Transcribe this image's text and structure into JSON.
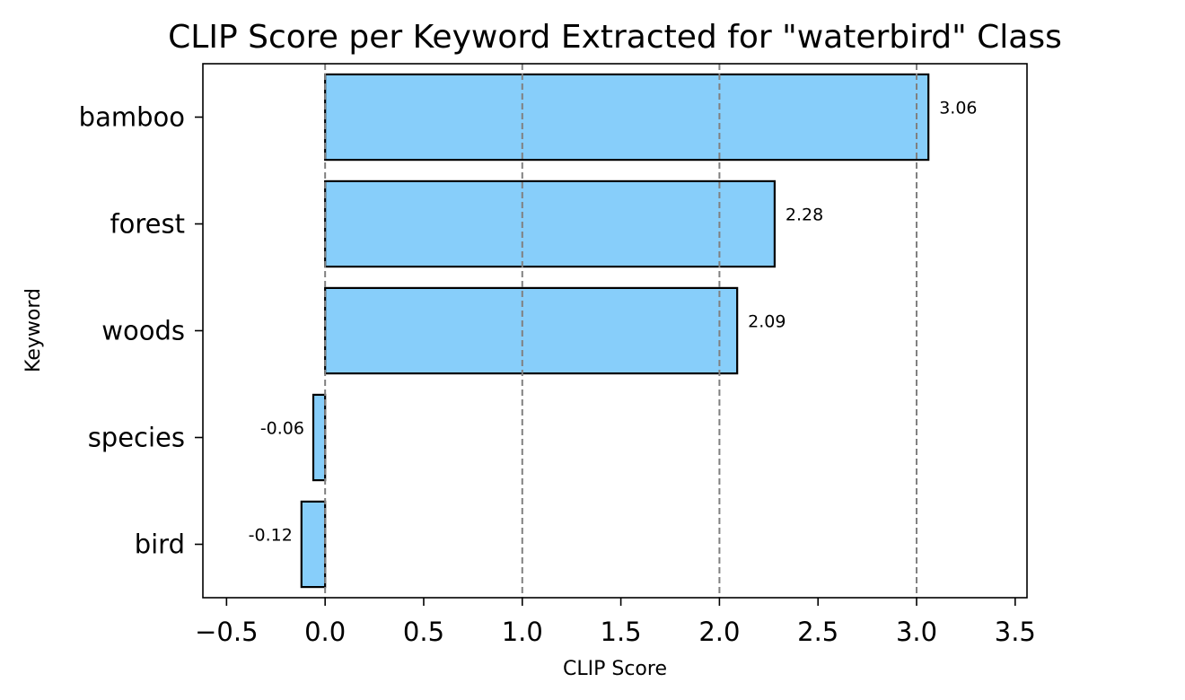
{
  "chart_data": {
    "type": "bar",
    "orientation": "horizontal",
    "title": "CLIP Score per Keyword Extracted for \"waterbird\" Class",
    "xlabel": "CLIP Score",
    "ylabel": "Keyword",
    "categories": [
      "bamboo",
      "forest",
      "woods",
      "species",
      "bird"
    ],
    "values": [
      3.06,
      2.28,
      2.09,
      -0.06,
      -0.12
    ],
    "value_labels": [
      "3.06",
      "2.28",
      "2.09",
      "-0.06",
      "-0.12"
    ],
    "xlim": [
      -0.62,
      3.56
    ],
    "xticks": [
      -0.5,
      0.0,
      0.5,
      1.0,
      1.5,
      2.0,
      2.5,
      3.0,
      3.5
    ],
    "xtick_labels": [
      "−0.5",
      "0.0",
      "0.5",
      "1.0",
      "1.5",
      "2.0",
      "2.5",
      "3.0",
      "3.5"
    ],
    "reference_lines": [
      0,
      1,
      2,
      3
    ],
    "bar_color": "#87cefa",
    "bar_edge_color": "#000000",
    "reference_line_color": "#808080",
    "grid": false,
    "legend": false
  }
}
